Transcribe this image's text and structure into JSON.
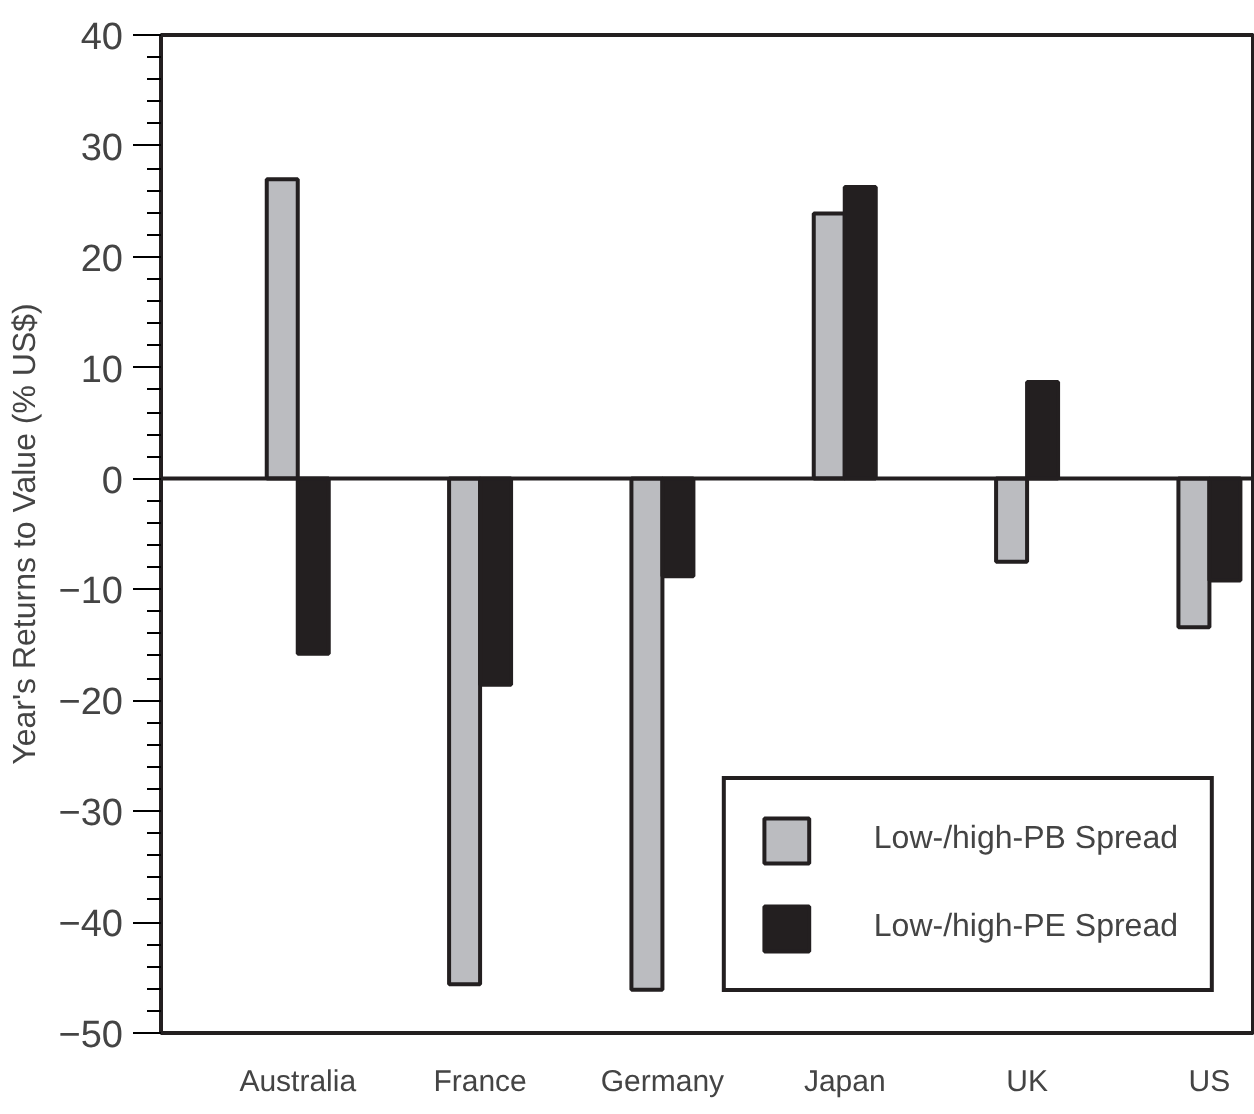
{
  "chart_data": {
    "type": "bar",
    "ylabel": "Year's Returns to Value (% US$)",
    "categories": [
      "Australia",
      "France",
      "Germany",
      "Japan",
      "UK",
      "US"
    ],
    "series": [
      {
        "name": "Low-/high-PB Spread",
        "color": "#bbbcc0",
        "values": [
          27.0,
          -45.6,
          -46.1,
          23.9,
          -7.5,
          -13.4
        ]
      },
      {
        "name": "Low-/high-PE Spread",
        "color": "#231f20",
        "values": [
          -15.8,
          -18.6,
          -8.8,
          26.3,
          8.7,
          -9.2
        ]
      }
    ],
    "ylim": [
      -50,
      40
    ],
    "yticks": [
      -50,
      -40,
      -30,
      -20,
      -10,
      0,
      10,
      20,
      30,
      40
    ],
    "legend": "bottom right"
  }
}
